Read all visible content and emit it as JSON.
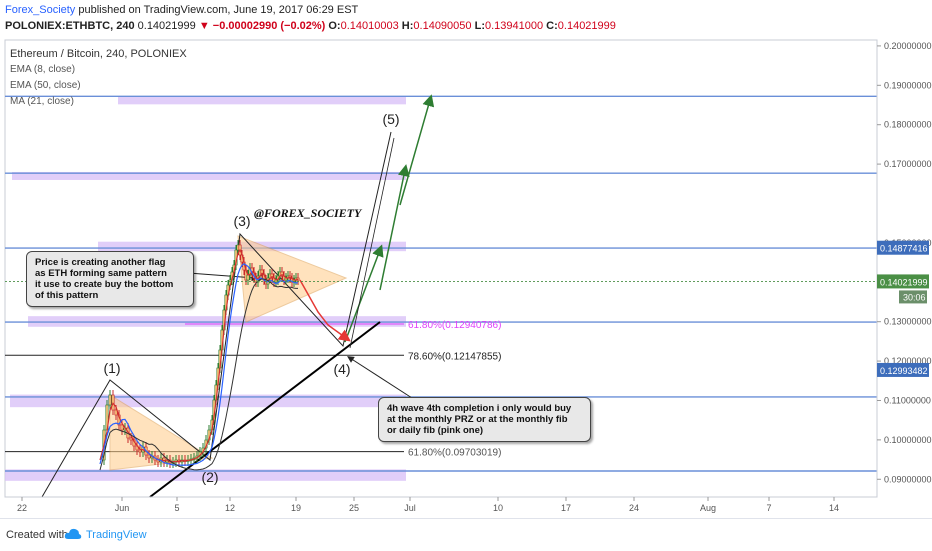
{
  "header": {
    "author": "Forex_Society",
    "published_text": "published on TradingView.com, June 19, 2017 06:29 EST",
    "symbol": "POLONIEX:ETHBTC, 240",
    "last": "0.14021999",
    "change": "▼ −0.00002990 (−0.02%)",
    "o_label": "O:",
    "o": "0.14010003",
    "h_label": "H:",
    "h": "0.14090050",
    "l_label": "L:",
    "l": "0.13941000",
    "c_label": "C:",
    "c": "0.14021999"
  },
  "legend": {
    "title": "Ethereum / Bitcoin, 240, POLONIEX",
    "ema8": "EMA (8, close)",
    "ema50": "EMA (50, close)",
    "ma21": "MA (21, close)"
  },
  "annotations": {
    "handle": "@FOREX_SOCIETY",
    "wave1": "(1)",
    "wave2": "(2)",
    "wave3": "(3)",
    "wave4": "(4)",
    "wave5": "(5)",
    "fib_618_upper": "61.80%(0.12940786)",
    "fib_786": "78.60%(0.12147855)",
    "fib_618_lower": "61.80%(0.09703019)",
    "note1_lines": [
      "Price is creating another flag",
      "as ETH forming same pattern",
      "it use to create buy the bottom",
      "of this pattern"
    ],
    "note2_lines": [
      "4h wave 4th completion i only would buy",
      "at the monthly PRZ or at the monthly fib",
      "or daily fib (pink one)"
    ]
  },
  "price_badges": {
    "top": "0.14877416",
    "current": "0.14021999",
    "timer": "30:06",
    "bottom": "0.12993482"
  },
  "footer": {
    "created_with": "Created with",
    "brand": "TradingView"
  },
  "colors": {
    "candle_up": "#2e7d32",
    "candle_down": "#c62828",
    "candle_body": "#f5c27a",
    "ema8": "#d32f2f",
    "ema50": "#333333",
    "ma21": "#2962ff",
    "zone": "#d7bdf7",
    "hline_blue": "#6a8fd8",
    "arrow_green": "#2e7d32",
    "arrow_red": "#e53935",
    "triangle": "#ffcc88",
    "badge_blue": "#3d6dbb",
    "badge_green": "#4a8f45",
    "badge_gray": "#6b8f6a"
  },
  "chart_data": {
    "type": "candlestick",
    "y_ticks": [
      "0.20000000",
      "0.19000000",
      "0.18000000",
      "0.17000000",
      "0.15000000",
      "0.13000000",
      "0.12000000",
      "0.11000000",
      "0.10000000",
      "0.09000000"
    ],
    "x_ticks": [
      "22",
      "Jun",
      "5",
      "12",
      "19",
      "25",
      "Jul",
      "10",
      "17",
      "24",
      "Aug",
      "7",
      "14"
    ],
    "ylim": [
      0.0855,
      0.2015
    ],
    "levels": [
      0.1872,
      0.1677,
      0.1487,
      0.1299,
      0.1109,
      0.0921
    ],
    "fib_levels": [
      0.12940786,
      0.12147855,
      0.09703019
    ],
    "zones": [
      {
        "from": 0.1852,
        "to": 0.1872
      },
      {
        "from": 0.1662,
        "to": 0.168
      },
      {
        "from": 0.1479,
        "to": 0.1503
      },
      {
        "from": 0.1287,
        "to": 0.1314
      },
      {
        "from": 0.1083,
        "to": 0.1115
      },
      {
        "from": 0.0896,
        "to": 0.0925
      }
    ],
    "waves": [
      {
        "label": "(1)",
        "x": "May 31",
        "y": 0.113
      },
      {
        "label": "(2)",
        "x": "Jun 10",
        "y": 0.0935
      },
      {
        "label": "(3)",
        "x": "Jun 12",
        "y": 0.1518
      },
      {
        "label": "(4)",
        "x": "Jun 24",
        "y": 0.1215
      },
      {
        "label": "(5)",
        "x": "Jun 27",
        "y": 0.179
      }
    ],
    "current_price": 0.14021999
  }
}
